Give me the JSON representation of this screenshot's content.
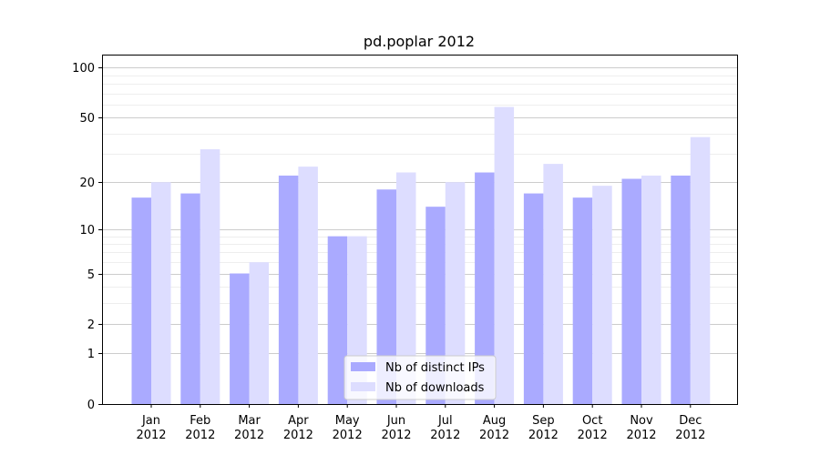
{
  "chart_data": {
    "type": "bar",
    "title": "pd.poplar 2012",
    "xlabel": "",
    "ylabel": "",
    "yscale": "symlog",
    "ylim": [
      0,
      120
    ],
    "yticks": [
      0,
      1,
      2,
      5,
      10,
      20,
      50,
      100
    ],
    "grid": true,
    "legend_position": "lower center",
    "categories": [
      [
        "Jan",
        "2012"
      ],
      [
        "Feb",
        "2012"
      ],
      [
        "Mar",
        "2012"
      ],
      [
        "Apr",
        "2012"
      ],
      [
        "May",
        "2012"
      ],
      [
        "Jun",
        "2012"
      ],
      [
        "Jul",
        "2012"
      ],
      [
        "Aug",
        "2012"
      ],
      [
        "Sep",
        "2012"
      ],
      [
        "Oct",
        "2012"
      ],
      [
        "Nov",
        "2012"
      ],
      [
        "Dec",
        "2012"
      ]
    ],
    "series": [
      {
        "name": "Nb of distinct IPs",
        "color": "#aaaaff",
        "values": [
          16,
          17,
          5,
          22,
          9,
          18,
          14,
          23,
          17,
          16,
          21,
          22
        ]
      },
      {
        "name": "Nb of downloads",
        "color": "#ddddff",
        "values": [
          20,
          32,
          6,
          25,
          9,
          23,
          20,
          58,
          26,
          19,
          22,
          38
        ]
      }
    ]
  }
}
